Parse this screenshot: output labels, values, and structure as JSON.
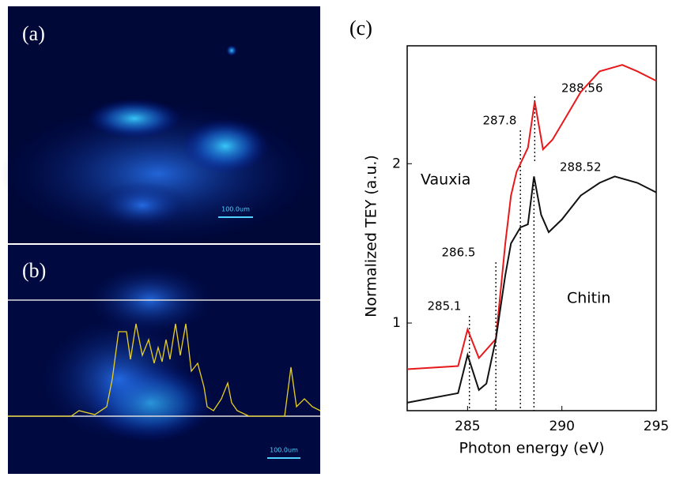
{
  "panel_a": {
    "label": "(a)",
    "scale_bar": "100.0um"
  },
  "panel_b": {
    "label": "(b)",
    "scale_bar": "100.0um"
  },
  "chart_data": {
    "type": "line",
    "label": "(c)",
    "x_label": "Photon energy (eV)",
    "y_label": "Normalized TEY (a.u.)",
    "xlim": [
      281.8,
      295
    ],
    "ylim": [
      0.45,
      2.74
    ],
    "xticks": [
      285,
      290,
      295
    ],
    "yticks": [
      1,
      2
    ],
    "series": [
      {
        "name": "Vauxia",
        "color": "#e8191b",
        "x": [
          281.8,
          284.5,
          285.0,
          285.6,
          286.5,
          287.0,
          287.3,
          287.6,
          287.8,
          288.2,
          288.56,
          289.0,
          289.5,
          290,
          291,
          292,
          293.2,
          294,
          295
        ],
        "values": [
          0.71,
          0.73,
          0.96,
          0.78,
          0.9,
          1.5,
          1.8,
          1.95,
          2.0,
          2.1,
          2.39,
          2.09,
          2.15,
          2.25,
          2.45,
          2.58,
          2.62,
          2.58,
          2.52
        ]
      },
      {
        "name": "Chitin",
        "color": "#111111",
        "x": [
          281.8,
          284.5,
          285.0,
          285.6,
          286.0,
          286.5,
          287.0,
          287.3,
          287.8,
          288.2,
          288.52,
          288.9,
          289.3,
          290,
          291,
          292,
          292.8,
          294,
          295
        ],
        "values": [
          0.5,
          0.56,
          0.8,
          0.58,
          0.62,
          0.9,
          1.3,
          1.5,
          1.6,
          1.62,
          1.92,
          1.68,
          1.57,
          1.65,
          1.8,
          1.88,
          1.92,
          1.88,
          1.82
        ]
      }
    ],
    "peaks": [
      285.1,
      286.5,
      287.8,
      288.56,
      288.52
    ]
  }
}
